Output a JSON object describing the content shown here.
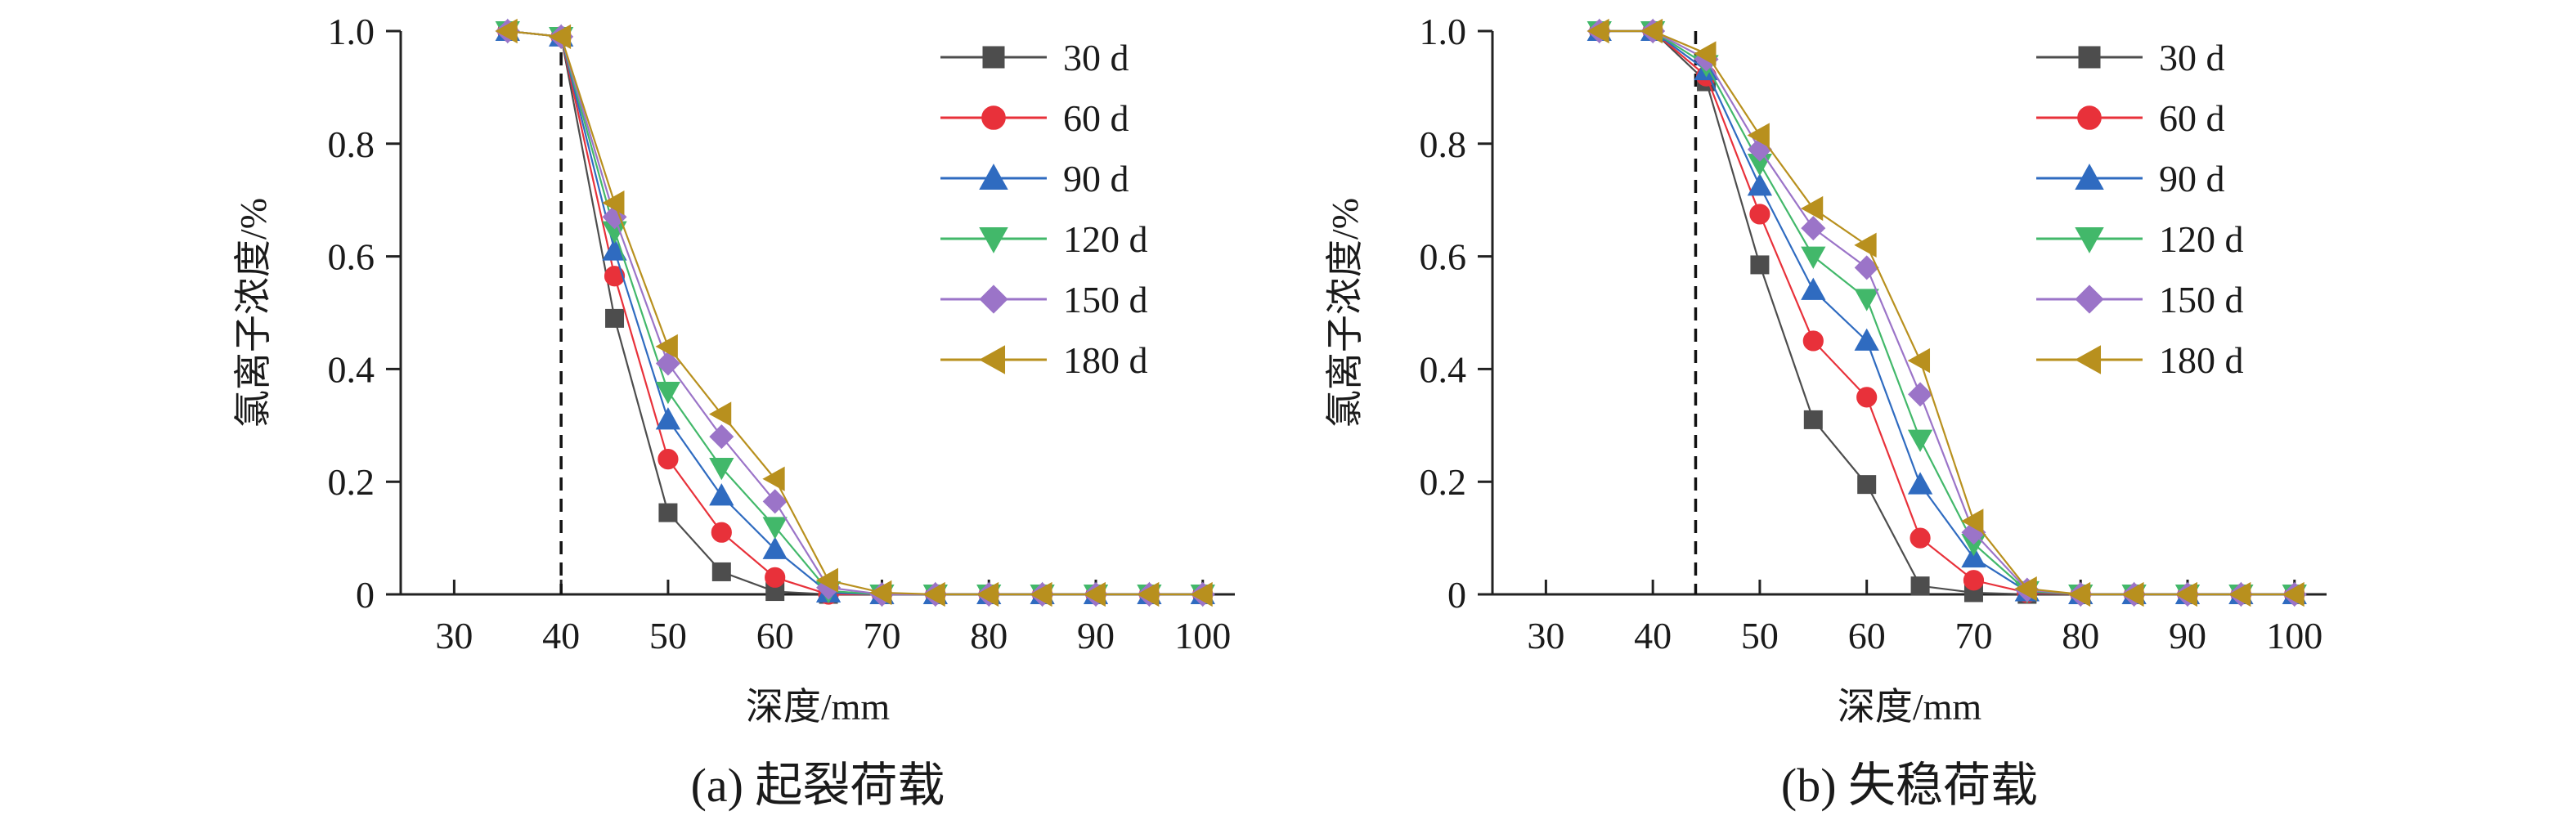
{
  "chart_data": [
    {
      "type": "line",
      "caption": "(a) 起裂荷载",
      "xlabel": "深度/mm",
      "ylabel": "氯离子浓度/%",
      "xlim": [
        25,
        103
      ],
      "ylim": [
        0,
        1.0
      ],
      "xticks": [
        30,
        40,
        50,
        60,
        70,
        80,
        90,
        100
      ],
      "yticks": [
        0,
        0.2,
        0.4,
        0.6,
        0.8,
        1.0
      ],
      "ytick_labels": [
        "0",
        "0.2",
        "0.4",
        "0.6",
        "0.8",
        "1.0"
      ],
      "marker_line": 40,
      "legend_position": "top-right",
      "x": [
        35,
        40,
        45,
        50,
        55,
        60,
        65,
        70,
        75,
        80,
        85,
        90,
        95,
        100
      ],
      "series": [
        {
          "name": "30 d",
          "color": "#4d4d4d",
          "marker": "square",
          "values": [
            1.0,
            0.99,
            0.49,
            0.145,
            0.04,
            0.005,
            0.0,
            0.0,
            0.0,
            0.0,
            0.0,
            0.0,
            0.0,
            0.0
          ]
        },
        {
          "name": "60 d",
          "color": "#e8313a",
          "marker": "circle",
          "values": [
            1.0,
            0.99,
            0.565,
            0.24,
            0.11,
            0.03,
            0.0,
            0.0,
            0.0,
            0.0,
            0.0,
            0.0,
            0.0,
            0.0
          ]
        },
        {
          "name": "90 d",
          "color": "#2f6bc0",
          "marker": "triangle-up",
          "values": [
            1.0,
            0.99,
            0.61,
            0.31,
            0.175,
            0.08,
            0.003,
            0.0,
            0.0,
            0.0,
            0.0,
            0.0,
            0.0,
            0.0
          ]
        },
        {
          "name": "120 d",
          "color": "#42b86a",
          "marker": "triangle-down",
          "values": [
            1.0,
            0.99,
            0.645,
            0.36,
            0.225,
            0.12,
            0.006,
            0.0,
            0.0,
            0.0,
            0.0,
            0.0,
            0.0,
            0.0
          ]
        },
        {
          "name": "150 d",
          "color": "#9b74c8",
          "marker": "diamond",
          "values": [
            1.0,
            0.99,
            0.67,
            0.41,
            0.28,
            0.165,
            0.012,
            0.0,
            0.0,
            0.0,
            0.0,
            0.0,
            0.0,
            0.0
          ]
        },
        {
          "name": "180 d",
          "color": "#b8901e",
          "marker": "triangle-left",
          "values": [
            1.0,
            0.99,
            0.695,
            0.44,
            0.32,
            0.205,
            0.025,
            0.003,
            0.0,
            0.0,
            0.0,
            0.0,
            0.0,
            0.0
          ]
        }
      ]
    },
    {
      "type": "line",
      "caption": "(b) 失稳荷载",
      "xlabel": "深度/mm",
      "ylabel": "氯离子浓度/%",
      "xlim": [
        25,
        103
      ],
      "ylim": [
        0,
        1.0
      ],
      "xticks": [
        30,
        40,
        50,
        60,
        70,
        80,
        90,
        100
      ],
      "yticks": [
        0,
        0.2,
        0.4,
        0.6,
        0.8,
        1.0
      ],
      "ytick_labels": [
        "0",
        "0.2",
        "0.4",
        "0.6",
        "0.8",
        "1.0"
      ],
      "marker_line": 44,
      "legend_position": "top-right",
      "x": [
        35,
        40,
        45,
        50,
        55,
        60,
        65,
        70,
        75,
        80,
        85,
        90,
        95,
        100
      ],
      "series": [
        {
          "name": "30 d",
          "color": "#4d4d4d",
          "marker": "square",
          "values": [
            1.0,
            1.0,
            0.91,
            0.585,
            0.31,
            0.195,
            0.015,
            0.003,
            0.0,
            0.0,
            0.0,
            0.0,
            0.0,
            0.0
          ]
        },
        {
          "name": "60 d",
          "color": "#e8313a",
          "marker": "circle",
          "values": [
            1.0,
            1.0,
            0.92,
            0.675,
            0.45,
            0.35,
            0.1,
            0.025,
            0.003,
            0.0,
            0.0,
            0.0,
            0.0,
            0.0
          ]
        },
        {
          "name": "90 d",
          "color": "#2f6bc0",
          "marker": "triangle-up",
          "values": [
            1.0,
            1.0,
            0.93,
            0.725,
            0.54,
            0.45,
            0.195,
            0.065,
            0.005,
            0.0,
            0.0,
            0.0,
            0.0,
            0.0
          ]
        },
        {
          "name": "120 d",
          "color": "#42b86a",
          "marker": "triangle-down",
          "values": [
            1.0,
            1.0,
            0.94,
            0.765,
            0.6,
            0.525,
            0.275,
            0.09,
            0.006,
            0.0,
            0.0,
            0.0,
            0.0,
            0.0
          ]
        },
        {
          "name": "150 d",
          "color": "#9b74c8",
          "marker": "diamond",
          "values": [
            1.0,
            1.0,
            0.95,
            0.79,
            0.65,
            0.58,
            0.355,
            0.11,
            0.008,
            0.0,
            0.0,
            0.0,
            0.0,
            0.0
          ]
        },
        {
          "name": "180 d",
          "color": "#b8901e",
          "marker": "triangle-left",
          "values": [
            1.0,
            1.0,
            0.96,
            0.815,
            0.685,
            0.62,
            0.415,
            0.13,
            0.01,
            0.0,
            0.0,
            0.0,
            0.0,
            0.0
          ]
        }
      ]
    }
  ]
}
